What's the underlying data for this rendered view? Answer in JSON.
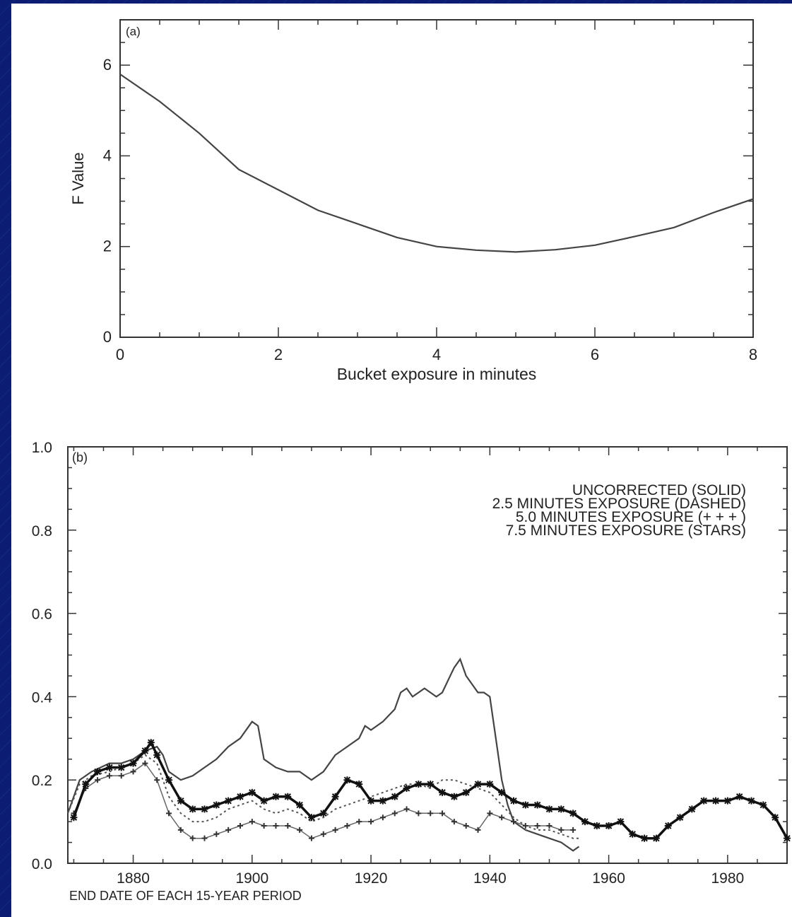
{
  "chart_data": [
    {
      "type": "line",
      "panel_label": "(a)",
      "xlabel": "Bucket exposure in minutes",
      "ylabel": "F Value",
      "xlim": [
        0,
        8
      ],
      "ylim": [
        0,
        7
      ],
      "xticks": [
        0,
        2,
        4,
        6,
        8
      ],
      "yticks": [
        0,
        2,
        4,
        6
      ],
      "series": [
        {
          "x": [
            0,
            0.5,
            1,
            1.5,
            2,
            2.5,
            3,
            3.5,
            4,
            4.5,
            5,
            5.5,
            6,
            6.5,
            7,
            7.5,
            8
          ],
          "y": [
            5.8,
            5.2,
            4.5,
            3.7,
            3.25,
            2.8,
            2.5,
            2.2,
            2.0,
            1.92,
            1.88,
            1.93,
            2.03,
            2.22,
            2.42,
            2.75,
            3.05
          ]
        }
      ]
    },
    {
      "type": "line",
      "panel_label": "(b)",
      "xlabel": "END DATE OF EACH 15-YEAR PERIOD",
      "ylabel": "",
      "xlim": [
        1869,
        1990
      ],
      "ylim": [
        0.0,
        1.0
      ],
      "xticks": [
        1880,
        1900,
        1920,
        1940,
        1960,
        1980
      ],
      "yticks": [
        0.0,
        0.2,
        0.4,
        0.6,
        0.8,
        1.0
      ],
      "ytick_labels": [
        "0.0",
        "0.2",
        "0.4",
        "0.6",
        "0.8",
        "1.0"
      ],
      "legend": [
        "UNCORRECTED (SOLID)",
        "2.5 MINUTES EXPOSURE (DASHED)",
        "5.0 MINUTES EXPOSURE (+ + + )",
        "7.5 MINUTES EXPOSURE (STARS)"
      ],
      "series": [
        {
          "style": "solid",
          "x": [
            1869,
            1871,
            1873,
            1876,
            1878,
            1880,
            1882,
            1884,
            1885,
            1886,
            1888,
            1890,
            1892,
            1894,
            1896,
            1898,
            1900,
            1901,
            1902,
            1904,
            1906,
            1908,
            1910,
            1912,
            1914,
            1916,
            1918,
            1919,
            1920,
            1922,
            1924,
            1925,
            1926,
            1927,
            1928,
            1929,
            1930,
            1931,
            1932,
            1933,
            1934,
            1935,
            1936,
            1938,
            1939,
            1940,
            1941,
            1942,
            1943,
            1944,
            1946,
            1948,
            1950,
            1952,
            1954,
            1955
          ],
          "y": [
            0.12,
            0.2,
            0.22,
            0.24,
            0.24,
            0.25,
            0.27,
            0.28,
            0.26,
            0.22,
            0.2,
            0.21,
            0.23,
            0.25,
            0.28,
            0.3,
            0.34,
            0.33,
            0.25,
            0.23,
            0.22,
            0.22,
            0.2,
            0.22,
            0.26,
            0.28,
            0.3,
            0.33,
            0.32,
            0.34,
            0.37,
            0.41,
            0.42,
            0.4,
            0.41,
            0.42,
            0.41,
            0.4,
            0.41,
            0.44,
            0.47,
            0.49,
            0.45,
            0.41,
            0.41,
            0.4,
            0.3,
            0.2,
            0.14,
            0.1,
            0.08,
            0.07,
            0.06,
            0.05,
            0.03,
            0.04
          ]
        },
        {
          "style": "dashed",
          "x": [
            1869,
            1871,
            1873,
            1876,
            1878,
            1880,
            1882,
            1884,
            1886,
            1888,
            1890,
            1892,
            1894,
            1896,
            1898,
            1900,
            1902,
            1904,
            1906,
            1908,
            1910,
            1912,
            1914,
            1916,
            1918,
            1920,
            1922,
            1924,
            1926,
            1928,
            1930,
            1932,
            1934,
            1936,
            1938,
            1940,
            1942,
            1944,
            1946,
            1948,
            1950,
            1952,
            1954,
            1955
          ],
          "y": [
            0.12,
            0.19,
            0.21,
            0.22,
            0.23,
            0.24,
            0.26,
            0.24,
            0.16,
            0.12,
            0.1,
            0.1,
            0.11,
            0.13,
            0.14,
            0.15,
            0.13,
            0.12,
            0.13,
            0.12,
            0.1,
            0.11,
            0.13,
            0.14,
            0.15,
            0.16,
            0.17,
            0.18,
            0.19,
            0.19,
            0.18,
            0.2,
            0.2,
            0.19,
            0.18,
            0.17,
            0.14,
            0.11,
            0.09,
            0.08,
            0.08,
            0.07,
            0.06,
            0.06
          ]
        },
        {
          "style": "plus",
          "x": [
            1870,
            1872,
            1874,
            1876,
            1878,
            1880,
            1882,
            1884,
            1886,
            1888,
            1890,
            1892,
            1894,
            1896,
            1898,
            1900,
            1902,
            1904,
            1906,
            1908,
            1910,
            1912,
            1914,
            1916,
            1918,
            1920,
            1922,
            1924,
            1926,
            1928,
            1930,
            1932,
            1934,
            1936,
            1938,
            1940,
            1942,
            1944,
            1946,
            1948,
            1950,
            1952,
            1954
          ],
          "y": [
            0.12,
            0.18,
            0.2,
            0.21,
            0.21,
            0.22,
            0.24,
            0.2,
            0.12,
            0.08,
            0.06,
            0.06,
            0.07,
            0.08,
            0.09,
            0.1,
            0.09,
            0.09,
            0.09,
            0.08,
            0.06,
            0.07,
            0.08,
            0.09,
            0.1,
            0.1,
            0.11,
            0.12,
            0.13,
            0.12,
            0.12,
            0.12,
            0.1,
            0.09,
            0.08,
            0.12,
            0.11,
            0.1,
            0.09,
            0.09,
            0.09,
            0.08,
            0.08
          ]
        },
        {
          "style": "stars",
          "x": [
            1870,
            1872,
            1874,
            1876,
            1878,
            1880,
            1882,
            1883,
            1884,
            1886,
            1888,
            1890,
            1892,
            1894,
            1896,
            1898,
            1900,
            1902,
            1904,
            1906,
            1908,
            1910,
            1912,
            1914,
            1916,
            1918,
            1920,
            1922,
            1924,
            1926,
            1928,
            1930,
            1932,
            1934,
            1936,
            1938,
            1940,
            1942,
            1944,
            1946,
            1948,
            1950,
            1952,
            1954,
            1956,
            1958,
            1960,
            1962,
            1964,
            1966,
            1968,
            1970,
            1972,
            1974,
            1976,
            1978,
            1980,
            1982,
            1984,
            1986,
            1988,
            1990
          ],
          "y": [
            0.11,
            0.19,
            0.22,
            0.23,
            0.23,
            0.24,
            0.27,
            0.29,
            0.26,
            0.2,
            0.15,
            0.13,
            0.13,
            0.14,
            0.15,
            0.16,
            0.17,
            0.15,
            0.16,
            0.16,
            0.14,
            0.11,
            0.12,
            0.16,
            0.2,
            0.19,
            0.15,
            0.15,
            0.16,
            0.18,
            0.19,
            0.19,
            0.17,
            0.16,
            0.17,
            0.19,
            0.19,
            0.17,
            0.15,
            0.14,
            0.14,
            0.13,
            0.13,
            0.12,
            0.1,
            0.09,
            0.09,
            0.1,
            0.07,
            0.06,
            0.06,
            0.09,
            0.11,
            0.13,
            0.15,
            0.15,
            0.15,
            0.16,
            0.15,
            0.14,
            0.11,
            0.06
          ]
        }
      ]
    }
  ]
}
